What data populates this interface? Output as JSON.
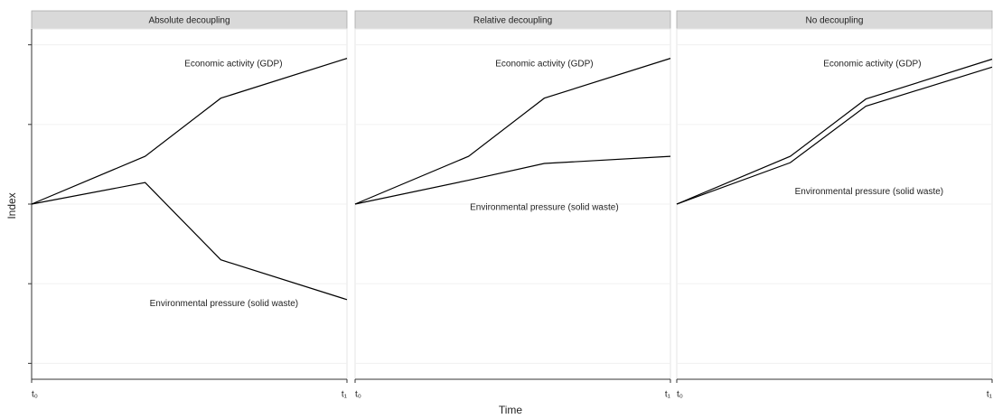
{
  "xlabel": "Time",
  "ylabel": "Index",
  "chart_data": [
    {
      "type": "line",
      "title": "Absolute decoupling",
      "x": [
        0,
        0.36,
        0.6,
        1
      ],
      "xlim": [
        0,
        1
      ],
      "xticks": [
        {
          "value": 0,
          "label": "t₀"
        },
        {
          "value": 1,
          "label": "t₁"
        }
      ],
      "ylim": [
        -0.2,
        4.2
      ],
      "yticks": [
        0,
        1,
        2,
        3,
        4
      ],
      "grid": true,
      "series": [
        {
          "name": "Economic activity (GDP)",
          "color": "#000000",
          "values": [
            2,
            2.6,
            3.33,
            3.83
          ]
        },
        {
          "name": "Environmental pressure (solid waste)",
          "color": "#000000",
          "values": [
            2,
            2.27,
            1.3,
            0.8
          ]
        }
      ]
    },
    {
      "type": "line",
      "title": "Relative decoupling",
      "x": [
        0,
        0.36,
        0.6,
        1
      ],
      "xlim": [
        0,
        1
      ],
      "xticks": [
        {
          "value": 0,
          "label": "t₀"
        },
        {
          "value": 1,
          "label": "t₁"
        }
      ],
      "ylim": [
        -0.2,
        4.2
      ],
      "yticks": [
        0,
        1,
        2,
        3,
        4
      ],
      "grid": true,
      "series": [
        {
          "name": "Economic activity (GDP)",
          "color": "#000000",
          "values": [
            2,
            2.6,
            3.33,
            3.83
          ]
        },
        {
          "name": "Environmental pressure (solid waste)",
          "color": "#000000",
          "values": [
            2,
            2.3,
            2.51,
            2.6
          ]
        }
      ]
    },
    {
      "type": "line",
      "title": "No decoupling",
      "x": [
        0,
        0.36,
        0.6,
        1
      ],
      "xlim": [
        0,
        1
      ],
      "xticks": [
        {
          "value": 0,
          "label": "t₀"
        },
        {
          "value": 1,
          "label": "t₁"
        }
      ],
      "ylim": [
        -0.2,
        4.2
      ],
      "yticks": [
        0,
        1,
        2,
        3,
        4
      ],
      "grid": true,
      "series": [
        {
          "name": "Economic activity (GDP)",
          "color": "#000000",
          "values": [
            2,
            2.6,
            3.32,
            3.82
          ]
        },
        {
          "name": "Environmental pressure (solid waste)",
          "color": "#000000",
          "values": [
            2,
            2.52,
            3.23,
            3.72
          ]
        }
      ]
    }
  ]
}
